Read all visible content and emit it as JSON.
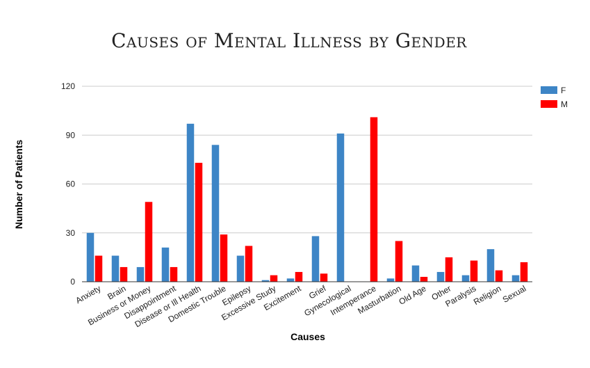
{
  "chart_data": {
    "type": "bar",
    "title": "Causes of Mental Illness by Gender",
    "xlabel": "Causes",
    "ylabel": "Number of Patients",
    "ylim": [
      0,
      120
    ],
    "yticks": [
      0,
      30,
      60,
      90,
      120
    ],
    "grid": true,
    "legend_position": "right-top",
    "categories": [
      "Anxiety",
      "Brain",
      "Business or Money",
      "Disappointment",
      "Disease or Ill Health",
      "Domestic Trouble",
      "Epilepsy",
      "Excessive Study",
      "Excitement",
      "Grief",
      "Gynecological",
      "Intemperance",
      "Masturbation",
      "Old Age",
      "Other",
      "Paralysis",
      "Religion",
      "Sexual"
    ],
    "series": [
      {
        "name": "F",
        "color": "#3d85c6",
        "values": [
          30,
          16,
          9,
          21,
          97,
          84,
          16,
          1,
          2,
          28,
          91,
          0,
          2,
          10,
          6,
          4,
          20,
          4
        ]
      },
      {
        "name": "M",
        "color": "#ff0000",
        "values": [
          16,
          9,
          49,
          9,
          73,
          29,
          22,
          4,
          6,
          5,
          0,
          101,
          25,
          3,
          15,
          13,
          7,
          12
        ]
      }
    ]
  }
}
